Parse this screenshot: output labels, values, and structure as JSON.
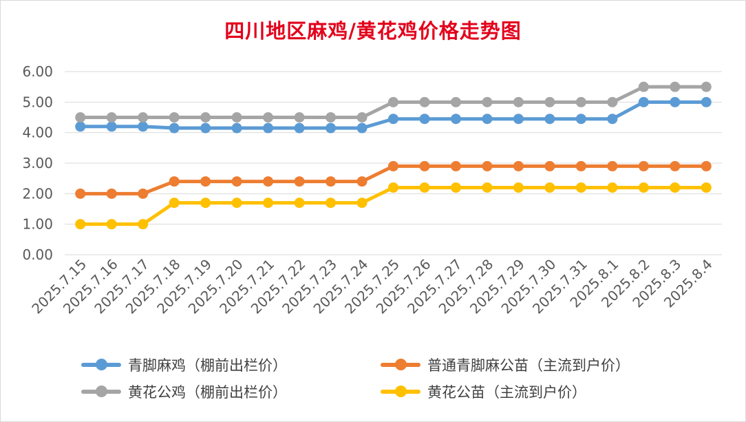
{
  "chart_data": {
    "type": "line",
    "title": "四川地区麻鸡/黄花鸡价格走势图",
    "xlabel": "",
    "ylabel": "",
    "ylim": [
      0,
      6
    ],
    "yticks": [
      "0.00",
      "1.00",
      "2.00",
      "3.00",
      "4.00",
      "5.00",
      "6.00"
    ],
    "grid": true,
    "legend_position": "bottom",
    "categories": [
      "2025.7.15",
      "2025.7.16",
      "2025.7.17",
      "2025.7.18",
      "2025.7.19",
      "2025.7.20",
      "2025.7.21",
      "2025.7.22",
      "2025.7.23",
      "2025.7.24",
      "2025.7.25",
      "2025.7.26",
      "2025.7.27",
      "2025.7.28",
      "2025.7.29",
      "2025.7.30",
      "2025.7.31",
      "2025.8.1",
      "2025.8.2",
      "2025.8.3",
      "2025.8.4"
    ],
    "series": [
      {
        "name": "青脚麻鸡（棚前出栏价）",
        "color": "#5b9bd5",
        "values": [
          4.2,
          4.2,
          4.2,
          4.15,
          4.15,
          4.15,
          4.15,
          4.15,
          4.15,
          4.15,
          4.45,
          4.45,
          4.45,
          4.45,
          4.45,
          4.45,
          4.45,
          4.45,
          5.0,
          5.0,
          5.0
        ]
      },
      {
        "name": "普通青脚麻公苗（主流到户价）",
        "color": "#ed7d31",
        "values": [
          2.0,
          2.0,
          2.0,
          2.4,
          2.4,
          2.4,
          2.4,
          2.4,
          2.4,
          2.4,
          2.9,
          2.9,
          2.9,
          2.9,
          2.9,
          2.9,
          2.9,
          2.9,
          2.9,
          2.9,
          2.9
        ]
      },
      {
        "name": "黄花公鸡（棚前出栏价）",
        "color": "#a5a5a5",
        "values": [
          4.5,
          4.5,
          4.5,
          4.5,
          4.5,
          4.5,
          4.5,
          4.5,
          4.5,
          4.5,
          5.0,
          5.0,
          5.0,
          5.0,
          5.0,
          5.0,
          5.0,
          5.0,
          5.5,
          5.5,
          5.5
        ]
      },
      {
        "name": "黄花公苗（主流到户价）",
        "color": "#ffc000",
        "values": [
          1.0,
          1.0,
          1.0,
          1.7,
          1.7,
          1.7,
          1.7,
          1.7,
          1.7,
          1.7,
          2.2,
          2.2,
          2.2,
          2.2,
          2.2,
          2.2,
          2.2,
          2.2,
          2.2,
          2.2,
          2.2
        ]
      }
    ]
  }
}
